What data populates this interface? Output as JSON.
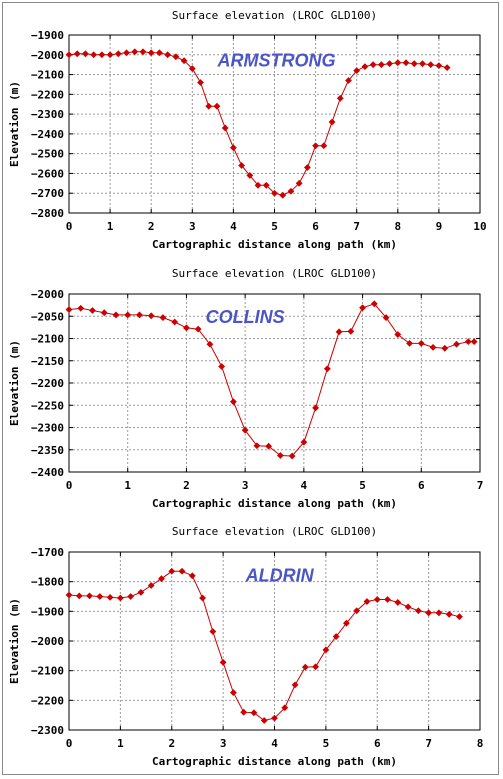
{
  "style": {
    "line_color": "#cc0000",
    "marker_color": "#cc0000",
    "annotation_color": "#4a55c8",
    "grid_color": "#9a9a9a"
  },
  "chart_data": [
    {
      "type": "line",
      "title": "Surface elevation (LROC GLD100)",
      "xlabel": "Cartographic distance along path (km)",
      "ylabel": "Elevation (m)",
      "annotation": "ARMSTRONG",
      "annotation_at": [
        5.05,
        -2060
      ],
      "xlim": [
        0,
        10
      ],
      "ylim": [
        -2800,
        -1900
      ],
      "xticks": [
        0,
        1,
        2,
        3,
        4,
        5,
        6,
        7,
        8,
        9,
        10
      ],
      "yticks": [
        -1900,
        -2000,
        -2100,
        -2200,
        -2300,
        -2400,
        -2500,
        -2600,
        -2700,
        -2800
      ],
      "grid": true,
      "series": [
        {
          "x": [
            0,
            0.2,
            0.4,
            0.6,
            0.8,
            1.0,
            1.2,
            1.4,
            1.6,
            1.8,
            2.0,
            2.2,
            2.4,
            2.6,
            2.8,
            3.0,
            3.2,
            3.4,
            3.6,
            3.8,
            4.0,
            4.2,
            4.4,
            4.6,
            4.8,
            5.0,
            5.2,
            5.4,
            5.6,
            5.8,
            6.0,
            6.2,
            6.4,
            6.6,
            6.8,
            7.0,
            7.2,
            7.4,
            7.6,
            7.8,
            8.0,
            8.2,
            8.4,
            8.6,
            8.8,
            9.0,
            9.2
          ],
          "y": [
            -2000,
            -1995,
            -1995,
            -2000,
            -2000,
            -2000,
            -1995,
            -1990,
            -1985,
            -1985,
            -1990,
            -1990,
            -2000,
            -2010,
            -2030,
            -2070,
            -2140,
            -2260,
            -2260,
            -2370,
            -2470,
            -2560,
            -2610,
            -2660,
            -2660,
            -2700,
            -2710,
            -2690,
            -2650,
            -2570,
            -2460,
            -2460,
            -2340,
            -2220,
            -2130,
            -2080,
            -2060,
            -2050,
            -2050,
            -2045,
            -2040,
            -2040,
            -2045,
            -2045,
            -2050,
            -2055,
            -2065
          ]
        }
      ]
    },
    {
      "type": "line",
      "title": "Surface elevation (LROC GLD100)",
      "xlabel": "Cartographic distance along path (km)",
      "ylabel": "Elevation (m)",
      "annotation": "COLLINS",
      "annotation_at": [
        3.0,
        -2065
      ],
      "xlim": [
        0,
        7
      ],
      "ylim": [
        -2400,
        -2000
      ],
      "xticks": [
        0,
        1,
        2,
        3,
        4,
        5,
        6,
        7
      ],
      "yticks": [
        -2000,
        -2050,
        -2100,
        -2150,
        -2200,
        -2250,
        -2300,
        -2350,
        -2400
      ],
      "grid": true,
      "series": [
        {
          "x": [
            0,
            0.2,
            0.4,
            0.6,
            0.8,
            1.0,
            1.2,
            1.4,
            1.6,
            1.8,
            2.0,
            2.2,
            2.4,
            2.6,
            2.8,
            3.0,
            3.2,
            3.4,
            3.6,
            3.8,
            4.0,
            4.2,
            4.4,
            4.6,
            4.8,
            5.0,
            5.2,
            5.4,
            5.6,
            5.8,
            6.0,
            6.2,
            6.4,
            6.6,
            6.8,
            6.9
          ],
          "y": [
            -2035,
            -2032,
            -2037,
            -2042,
            -2047,
            -2047,
            -2047,
            -2049,
            -2053,
            -2063,
            -2076,
            -2079,
            -2113,
            -2163,
            -2242,
            -2306,
            -2341,
            -2342,
            -2363,
            -2364,
            -2333,
            -2256,
            -2168,
            -2085,
            -2084,
            -2031,
            -2022,
            -2053,
            -2091,
            -2111,
            -2111,
            -2120,
            -2122,
            -2113,
            -2107,
            -2107
          ]
        }
      ]
    },
    {
      "type": "line",
      "title": "Surface elevation (LROC GLD100)",
      "xlabel": "Cartographic distance along path (km)",
      "ylabel": "Elevation (m)",
      "annotation": "ALDRIN",
      "annotation_at": [
        4.1,
        -1800
      ],
      "xlim": [
        0,
        8
      ],
      "ylim": [
        -2300,
        -1700
      ],
      "xticks": [
        0,
        1,
        2,
        3,
        4,
        5,
        6,
        7,
        8
      ],
      "yticks": [
        -1700,
        -1800,
        -1900,
        -2000,
        -2100,
        -2200,
        -2300
      ],
      "grid": true,
      "series": [
        {
          "x": [
            0,
            0.2,
            0.4,
            0.6,
            0.8,
            1.0,
            1.2,
            1.4,
            1.6,
            1.8,
            2.0,
            2.2,
            2.4,
            2.6,
            2.8,
            3.0,
            3.2,
            3.4,
            3.6,
            3.8,
            4.0,
            4.2,
            4.4,
            4.6,
            4.8,
            5.0,
            5.2,
            5.4,
            5.6,
            5.8,
            6.0,
            6.2,
            6.4,
            6.6,
            6.8,
            7.0,
            7.2,
            7.4,
            7.6
          ],
          "y": [
            -1845,
            -1848,
            -1848,
            -1850,
            -1853,
            -1855,
            -1850,
            -1836,
            -1813,
            -1790,
            -1765,
            -1765,
            -1780,
            -1855,
            -1968,
            -2072,
            -2174,
            -2240,
            -2242,
            -2268,
            -2260,
            -2225,
            -2148,
            -2088,
            -2087,
            -2030,
            -1985,
            -1940,
            -1898,
            -1867,
            -1860,
            -1860,
            -1870,
            -1885,
            -1898,
            -1905,
            -1905,
            -1910,
            -1918
          ]
        }
      ]
    }
  ]
}
